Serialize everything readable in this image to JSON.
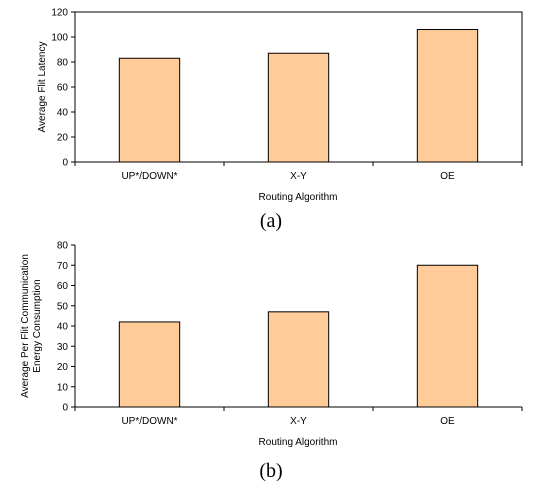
{
  "chart_data": [
    {
      "type": "bar",
      "caption": "(a)",
      "categories": [
        "UP*/DOWN*",
        "X-Y",
        "OE"
      ],
      "values": [
        83,
        87,
        106
      ],
      "xlabel": "Routing Algorithm",
      "ylabel": "Average Flit Latency",
      "ylim": [
        0,
        120
      ],
      "yticks": [
        "0",
        "20",
        "40",
        "60",
        "80",
        "100",
        "120"
      ],
      "grid": false,
      "bar_color": "#FFCC99"
    },
    {
      "type": "bar",
      "caption": "(b)",
      "categories": [
        "UP*/DOWN*",
        "X-Y",
        "OE"
      ],
      "values": [
        42,
        47,
        70
      ],
      "xlabel": "Routing Algorithm",
      "ylabel_lines": [
        "Average Per Flit Communication",
        "Energy Consumption"
      ],
      "ylim": [
        0,
        80
      ],
      "yticks": [
        "0",
        "10",
        "20",
        "30",
        "40",
        "50",
        "60",
        "70",
        "80"
      ],
      "grid": false,
      "bar_color": "#FFCC99"
    }
  ]
}
